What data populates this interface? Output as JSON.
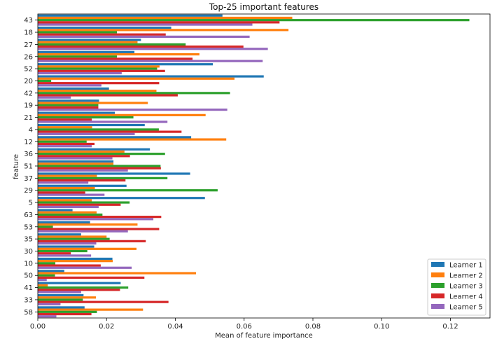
{
  "chart_data": {
    "type": "bar",
    "orientation": "horizontal",
    "title": "Top-25 important features",
    "xlabel": "Mean of feature importance",
    "ylabel": "feature",
    "xlim": [
      0,
      0.1315
    ],
    "xticks": [
      0.0,
      0.02,
      0.04,
      0.06,
      0.08,
      0.1,
      0.12
    ],
    "xtick_labels": [
      "0.00",
      "0.02",
      "0.04",
      "0.06",
      "0.08",
      "0.10",
      "0.12"
    ],
    "categories": [
      "43",
      "18",
      "27",
      "26",
      "52",
      "20",
      "42",
      "19",
      "21",
      "4",
      "12",
      "36",
      "51",
      "37",
      "29",
      "5",
      "63",
      "53",
      "35",
      "30",
      "10",
      "50",
      "41",
      "33",
      "58"
    ],
    "legend_position": "lower right",
    "grid": false,
    "series": [
      {
        "name": "Learner 1",
        "color": "#1f77b4",
        "values": [
          0.0537,
          0.0388,
          0.03,
          0.0281,
          0.0509,
          0.0657,
          0.0207,
          0.0178,
          0.0224,
          0.0311,
          0.0446,
          0.0326,
          0.022,
          0.0443,
          0.0258,
          0.0486,
          0.0101,
          0.0152,
          0.0126,
          0.0164,
          0.0217,
          0.0077,
          0.0241,
          0.0133,
          0.0136
        ]
      },
      {
        "name": "Learner 2",
        "color": "#ff7f0e",
        "values": [
          0.074,
          0.0729,
          0.029,
          0.047,
          0.0354,
          0.0572,
          0.0345,
          0.032,
          0.0488,
          0.0158,
          0.0548,
          0.0252,
          0.022,
          0.0172,
          0.0166,
          0.0157,
          0.0171,
          0.029,
          0.02,
          0.0287,
          0.0218,
          0.046,
          0.0029,
          0.0169,
          0.0306
        ]
      },
      {
        "name": "Learner 3",
        "color": "#2ca02c",
        "values": [
          0.1255,
          0.023,
          0.043,
          0.023,
          0.0347,
          0.0039,
          0.0559,
          0.0176,
          0.0278,
          0.0352,
          0.0142,
          0.037,
          0.0357,
          0.0377,
          0.0523,
          0.0267,
          0.0188,
          0.0044,
          0.0209,
          0.0144,
          0.0051,
          0.005,
          0.0263,
          0.0131,
          0.0172
        ]
      },
      {
        "name": "Learner 4",
        "color": "#d62728",
        "values": [
          0.0703,
          0.0372,
          0.0598,
          0.045,
          0.037,
          0.0353,
          0.0407,
          0.0176,
          0.0157,
          0.0418,
          0.0165,
          0.0268,
          0.0358,
          0.0255,
          0.0138,
          0.0241,
          0.0359,
          0.0353,
          0.0314,
          0.0096,
          0.0183,
          0.031,
          0.0239,
          0.038,
          0.0156
        ]
      },
      {
        "name": "Learner 5",
        "color": "#9467bd",
        "values": [
          0.0624,
          0.0616,
          0.0669,
          0.0654,
          0.0244,
          0.0185,
          0.0096,
          0.0551,
          0.0377,
          0.0282,
          0.0157,
          0.0217,
          0.0262,
          0.0147,
          0.0194,
          0.0177,
          0.0336,
          0.0262,
          0.017,
          0.0155,
          0.0273,
          0.0026,
          0.0126,
          0.0066,
          0.0054
        ]
      }
    ]
  }
}
